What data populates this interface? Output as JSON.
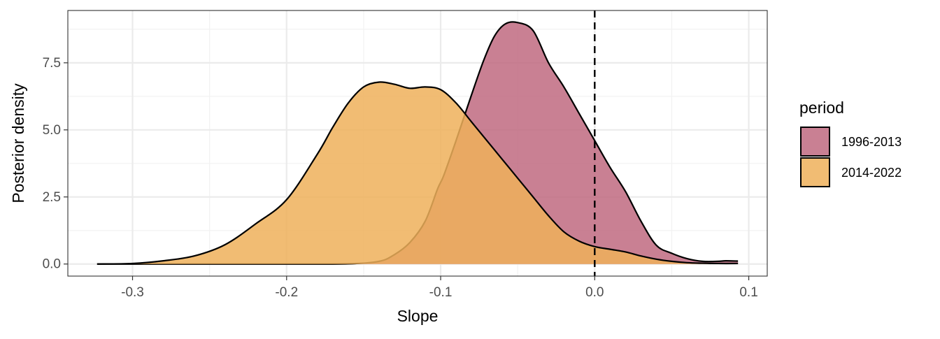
{
  "chart_data": {
    "type": "area",
    "xlabel": "Slope",
    "ylabel": "Posterior density",
    "xlim": [
      -0.342,
      0.112
    ],
    "ylim": [
      -0.45,
      9.45
    ],
    "x_ticks": [
      -0.3,
      -0.2,
      -0.1,
      0.0,
      0.1
    ],
    "x_tick_labels": [
      "-0.3",
      "-0.2",
      "-0.1",
      "0.0",
      "0.1"
    ],
    "y_ticks": [
      0.0,
      2.5,
      5.0,
      7.5
    ],
    "y_tick_labels": [
      "0.0",
      "2.5",
      "5.0",
      "7.5"
    ],
    "reference_line": {
      "x": 0.0,
      "style": "dashed"
    },
    "legend": {
      "title": "period",
      "position": "right"
    },
    "series": [
      {
        "name": "1996-2013",
        "color": "#c06a80",
        "points": [
          [
            -0.323,
            0.0
          ],
          [
            -0.2,
            0.0
          ],
          [
            -0.16,
            0.01
          ],
          [
            -0.14,
            0.1
          ],
          [
            -0.13,
            0.35
          ],
          [
            -0.12,
            0.8
          ],
          [
            -0.11,
            1.6
          ],
          [
            -0.102,
            2.8
          ],
          [
            -0.098,
            3.3
          ],
          [
            -0.09,
            4.6
          ],
          [
            -0.08,
            6.3
          ],
          [
            -0.072,
            7.6
          ],
          [
            -0.065,
            8.5
          ],
          [
            -0.058,
            8.95
          ],
          [
            -0.05,
            9.0
          ],
          [
            -0.04,
            8.7
          ],
          [
            -0.03,
            7.5
          ],
          [
            -0.02,
            6.6
          ],
          [
            -0.01,
            5.6
          ],
          [
            0.0,
            4.6
          ],
          [
            0.01,
            3.6
          ],
          [
            0.02,
            2.7
          ],
          [
            0.03,
            1.6
          ],
          [
            0.04,
            0.7
          ],
          [
            0.05,
            0.4
          ],
          [
            0.06,
            0.2
          ],
          [
            0.07,
            0.1
          ],
          [
            0.08,
            0.1
          ],
          [
            0.085,
            0.12
          ],
          [
            0.093,
            0.11
          ]
        ]
      },
      {
        "name": "2014-2022",
        "color": "#efb05a",
        "points": [
          [
            -0.323,
            0.0
          ],
          [
            -0.3,
            0.02
          ],
          [
            -0.28,
            0.12
          ],
          [
            -0.26,
            0.3
          ],
          [
            -0.24,
            0.72
          ],
          [
            -0.22,
            1.5
          ],
          [
            -0.2,
            2.4
          ],
          [
            -0.18,
            4.1
          ],
          [
            -0.17,
            5.1
          ],
          [
            -0.16,
            6.0
          ],
          [
            -0.15,
            6.6
          ],
          [
            -0.14,
            6.78
          ],
          [
            -0.13,
            6.7
          ],
          [
            -0.12,
            6.55
          ],
          [
            -0.11,
            6.6
          ],
          [
            -0.1,
            6.5
          ],
          [
            -0.09,
            6.0
          ],
          [
            -0.08,
            5.3
          ],
          [
            -0.07,
            4.6
          ],
          [
            -0.06,
            3.9
          ],
          [
            -0.05,
            3.2
          ],
          [
            -0.04,
            2.5
          ],
          [
            -0.03,
            1.8
          ],
          [
            -0.02,
            1.2
          ],
          [
            -0.01,
            0.85
          ],
          [
            0.0,
            0.65
          ],
          [
            0.01,
            0.55
          ],
          [
            0.02,
            0.45
          ],
          [
            0.03,
            0.3
          ],
          [
            0.04,
            0.18
          ],
          [
            0.05,
            0.1
          ],
          [
            0.06,
            0.05
          ],
          [
            0.07,
            0.03
          ],
          [
            0.08,
            0.02
          ],
          [
            0.093,
            0.02
          ]
        ]
      }
    ]
  }
}
